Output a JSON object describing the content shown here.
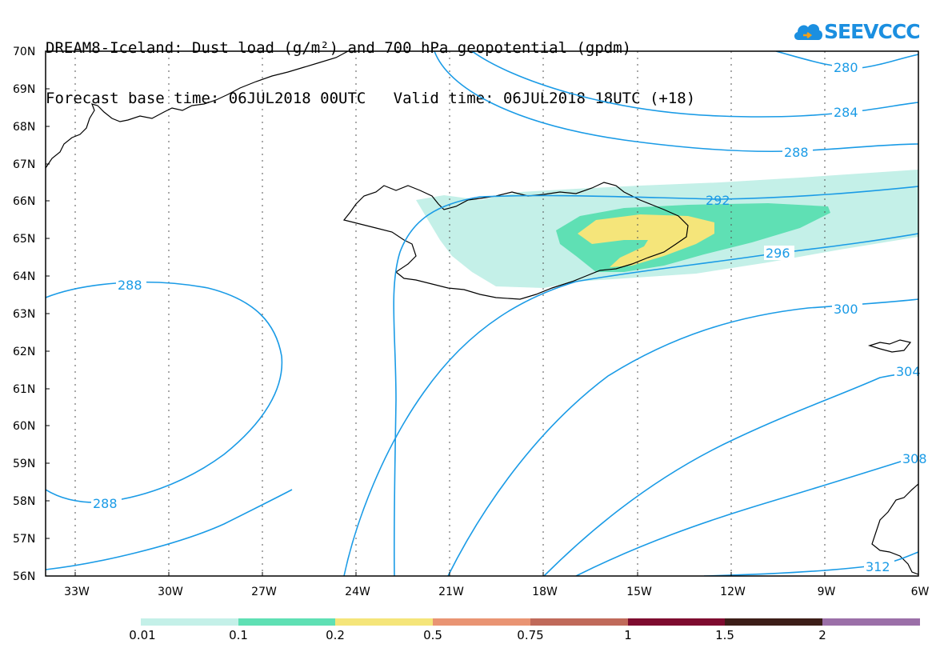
{
  "title": {
    "line1": "DREAM8-Iceland: Dust load (g/m²) and 700 hPa geopotential (gpdm)",
    "line2": "Forecast base time: 06JUL2018 00UTC   Valid time: 06JUL2018 18UTC (+18)"
  },
  "logo": {
    "text": "SEEVCCC",
    "icon": "cloud-icon",
    "color": "#1b8fe0"
  },
  "map": {
    "lat_labels": [
      "70N",
      "69N",
      "68N",
      "67N",
      "66N",
      "65N",
      "64N",
      "63N",
      "62N",
      "61N",
      "60N",
      "59N",
      "58N",
      "57N",
      "56N"
    ],
    "lon_labels": [
      "33W",
      "30W",
      "27W",
      "24W",
      "21W",
      "18W",
      "15W",
      "12W",
      "9W",
      "6W"
    ],
    "contour_color": "#1a9be6",
    "contour_labels": [
      "280",
      "284",
      "288",
      "292",
      "296",
      "300",
      "304",
      "308",
      "312",
      "288",
      "288"
    ]
  },
  "colorbar": {
    "labels": [
      "0.01",
      "0.1",
      "0.2",
      "0.5",
      "0.75",
      "1",
      "1.5",
      "2"
    ],
    "colors": [
      "#c4f0e8",
      "#5fe0b4",
      "#f5e57a",
      "#e99473",
      "#c06a5a",
      "#a24848",
      "#7e0b2f",
      "#3c1d18",
      "#9b6fa8"
    ]
  }
}
